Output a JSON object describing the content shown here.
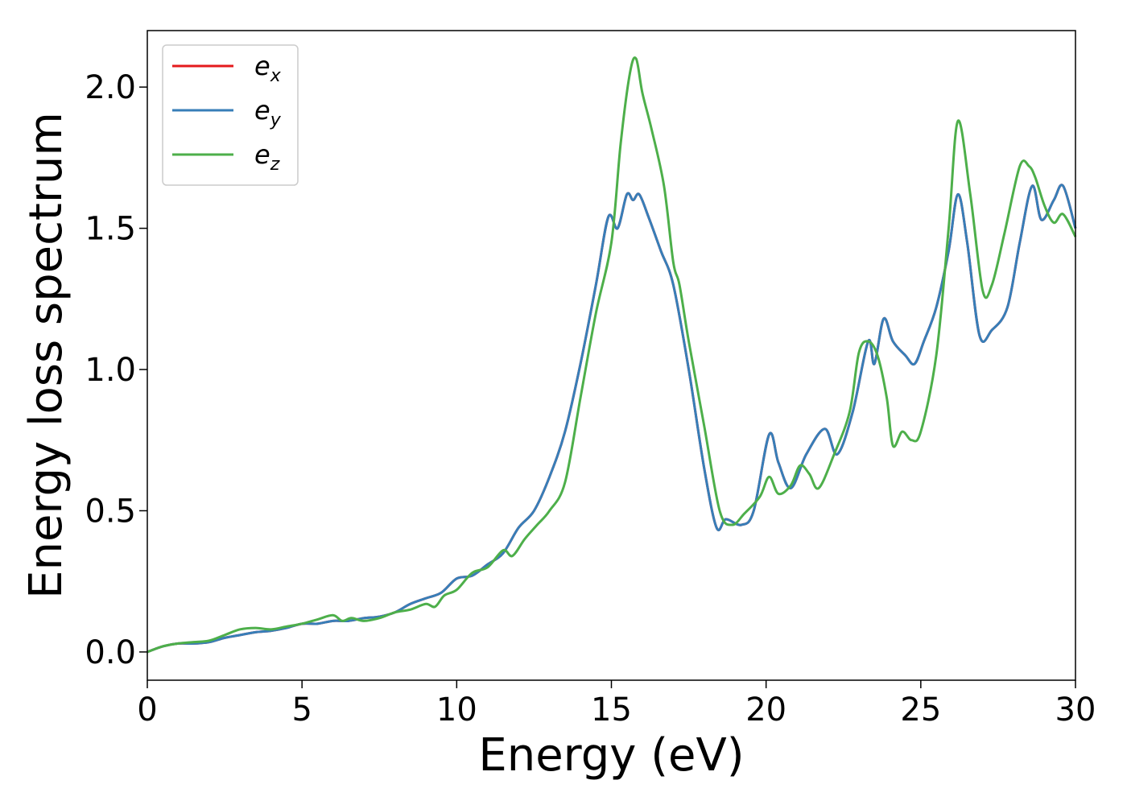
{
  "chart_data": {
    "type": "line",
    "xlabel": "Energy (eV)",
    "ylabel": "Energy loss spectrum",
    "xlim": [
      0,
      30
    ],
    "ylim": [
      -0.1,
      2.2
    ],
    "xticks": [
      0,
      5,
      10,
      15,
      20,
      25,
      30
    ],
    "xtick_labels": [
      "0",
      "5",
      "10",
      "15",
      "20",
      "25",
      "30"
    ],
    "yticks": [
      0.0,
      0.5,
      1.0,
      1.5,
      2.0
    ],
    "ytick_labels": [
      "0.0",
      "0.5",
      "1.0",
      "1.5",
      "2.0"
    ],
    "grid": false,
    "legend_position": "top-left",
    "series": [
      {
        "name": "e_x",
        "legend_main": "e",
        "legend_sub": "x",
        "color": "#e41a1c",
        "x": [
          0,
          0.5,
          1,
          1.5,
          2,
          2.5,
          3,
          3.5,
          4,
          4.5,
          5,
          5.5,
          6,
          6.5,
          7,
          7.5,
          8,
          8.5,
          9,
          9.5,
          10,
          10.5,
          11,
          11.5,
          12,
          12.5,
          13,
          13.5,
          14,
          14.5,
          14.9,
          15.2,
          15.5,
          15.7,
          15.9,
          16.2,
          16.6,
          17,
          17.5,
          18,
          18.4,
          18.7,
          19.2,
          19.6,
          20.1,
          20.4,
          20.8,
          21.3,
          21.9,
          22.3,
          22.8,
          23.3,
          23.5,
          23.8,
          24.1,
          24.5,
          24.8,
          25.1,
          25.5,
          25.9,
          26.2,
          26.5,
          26.9,
          27.3,
          27.8,
          28.2,
          28.6,
          28.9,
          29.3,
          29.6,
          30
        ],
        "values": [
          0.0,
          0.02,
          0.03,
          0.03,
          0.035,
          0.05,
          0.06,
          0.07,
          0.075,
          0.085,
          0.1,
          0.1,
          0.11,
          0.11,
          0.12,
          0.125,
          0.14,
          0.17,
          0.19,
          0.21,
          0.26,
          0.27,
          0.31,
          0.35,
          0.44,
          0.5,
          0.62,
          0.78,
          1.02,
          1.3,
          1.54,
          1.5,
          1.62,
          1.6,
          1.62,
          1.54,
          1.42,
          1.3,
          1.0,
          0.65,
          0.44,
          0.47,
          0.45,
          0.5,
          0.77,
          0.67,
          0.58,
          0.7,
          0.79,
          0.7,
          0.85,
          1.1,
          1.02,
          1.18,
          1.1,
          1.05,
          1.02,
          1.1,
          1.22,
          1.42,
          1.62,
          1.45,
          1.12,
          1.14,
          1.22,
          1.45,
          1.65,
          1.53,
          1.6,
          1.65,
          1.5
        ]
      },
      {
        "name": "e_y",
        "legend_main": "e",
        "legend_sub": "y",
        "color": "#377eb8",
        "x": [
          0,
          0.5,
          1,
          1.5,
          2,
          2.5,
          3,
          3.5,
          4,
          4.5,
          5,
          5.5,
          6,
          6.5,
          7,
          7.5,
          8,
          8.5,
          9,
          9.5,
          10,
          10.5,
          11,
          11.5,
          12,
          12.5,
          13,
          13.5,
          14,
          14.5,
          14.9,
          15.2,
          15.5,
          15.7,
          15.9,
          16.2,
          16.6,
          17,
          17.5,
          18,
          18.4,
          18.7,
          19.2,
          19.6,
          20.1,
          20.4,
          20.8,
          21.3,
          21.9,
          22.3,
          22.8,
          23.3,
          23.5,
          23.8,
          24.1,
          24.5,
          24.8,
          25.1,
          25.5,
          25.9,
          26.2,
          26.5,
          26.9,
          27.3,
          27.8,
          28.2,
          28.6,
          28.9,
          29.3,
          29.6,
          30
        ],
        "values": [
          0.0,
          0.02,
          0.03,
          0.03,
          0.035,
          0.05,
          0.06,
          0.07,
          0.075,
          0.085,
          0.1,
          0.1,
          0.11,
          0.11,
          0.12,
          0.125,
          0.14,
          0.17,
          0.19,
          0.21,
          0.26,
          0.27,
          0.31,
          0.35,
          0.44,
          0.5,
          0.62,
          0.78,
          1.02,
          1.3,
          1.54,
          1.5,
          1.62,
          1.6,
          1.62,
          1.54,
          1.42,
          1.3,
          1.0,
          0.65,
          0.44,
          0.47,
          0.45,
          0.5,
          0.77,
          0.67,
          0.58,
          0.7,
          0.79,
          0.7,
          0.85,
          1.1,
          1.02,
          1.18,
          1.1,
          1.05,
          1.02,
          1.1,
          1.22,
          1.42,
          1.62,
          1.45,
          1.12,
          1.14,
          1.22,
          1.45,
          1.65,
          1.53,
          1.6,
          1.65,
          1.5
        ]
      },
      {
        "name": "e_z",
        "legend_main": "e",
        "legend_sub": "z",
        "color": "#4daf4a",
        "x": [
          0,
          0.5,
          1,
          1.5,
          2,
          2.5,
          3,
          3.5,
          4,
          4.5,
          5,
          5.5,
          6,
          6.3,
          6.6,
          7,
          7.5,
          8,
          8.5,
          9,
          9.3,
          9.6,
          10,
          10.5,
          11,
          11.5,
          11.8,
          12.2,
          12.6,
          13,
          13.5,
          14,
          14.5,
          15,
          15.3,
          15.6,
          15.8,
          16,
          16.3,
          16.7,
          17,
          17.2,
          17.5,
          18,
          18.5,
          18.9,
          19.3,
          19.8,
          20.1,
          20.4,
          20.8,
          21.1,
          21.4,
          21.7,
          22.2,
          22.7,
          23,
          23.3,
          23.6,
          23.9,
          24.1,
          24.4,
          24.7,
          25,
          25.5,
          25.9,
          26.2,
          26.6,
          27,
          27.3,
          27.7,
          28.2,
          28.5,
          28.7,
          29,
          29.3,
          29.6,
          30
        ],
        "values": [
          0.0,
          0.02,
          0.03,
          0.035,
          0.04,
          0.06,
          0.08,
          0.085,
          0.08,
          0.09,
          0.1,
          0.115,
          0.13,
          0.11,
          0.12,
          0.11,
          0.12,
          0.14,
          0.15,
          0.17,
          0.16,
          0.2,
          0.22,
          0.28,
          0.3,
          0.36,
          0.34,
          0.4,
          0.45,
          0.5,
          0.6,
          0.9,
          1.2,
          1.45,
          1.8,
          2.05,
          2.1,
          1.98,
          1.85,
          1.65,
          1.38,
          1.3,
          1.1,
          0.8,
          0.5,
          0.45,
          0.49,
          0.55,
          0.62,
          0.56,
          0.59,
          0.66,
          0.63,
          0.58,
          0.7,
          0.85,
          1.06,
          1.1,
          1.05,
          0.9,
          0.73,
          0.78,
          0.75,
          0.78,
          1.05,
          1.5,
          1.88,
          1.62,
          1.28,
          1.3,
          1.48,
          1.72,
          1.72,
          1.68,
          1.58,
          1.52,
          1.55,
          1.47
        ]
      }
    ]
  }
}
